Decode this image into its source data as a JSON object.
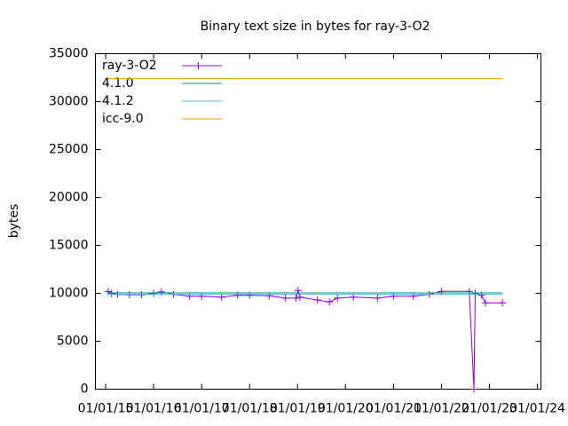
{
  "chart_data": {
    "type": "line",
    "title": "Binary text size in bytes for ray-3-O2",
    "y_label": "bytes",
    "xlim": [
      "2014-10-15",
      "2024-01-28"
    ],
    "xticks": [
      {
        "value": "2015-01-01",
        "label": "01/01/15"
      },
      {
        "value": "2016-01-01",
        "label": "01/01/16"
      },
      {
        "value": "2017-01-01",
        "label": "01/01/17"
      },
      {
        "value": "2018-01-01",
        "label": "01/01/18"
      },
      {
        "value": "2019-01-01",
        "label": "01/01/19"
      },
      {
        "value": "2020-01-01",
        "label": "01/01/20"
      },
      {
        "value": "2021-01-01",
        "label": "01/01/21"
      },
      {
        "value": "2022-01-01",
        "label": "01/01/22"
      },
      {
        "value": "2023-01-01",
        "label": "01/01/23"
      },
      {
        "value": "2024-01-01",
        "label": "01/01/24"
      }
    ],
    "ylim": [
      0,
      35000
    ],
    "yticks": [
      0,
      5000,
      10000,
      15000,
      20000,
      25000,
      30000,
      35000
    ],
    "legend": "top-left",
    "series": [
      {
        "name": "ray-3-O2",
        "color": "#9400d3",
        "markers": true,
        "x": [
          "2015-01-20",
          "2015-02-15",
          "2015-04-01",
          "2015-07-01",
          "2015-10-01",
          "2016-01-01",
          "2016-03-01",
          "2016-06-01",
          "2016-10-01",
          "2017-01-01",
          "2017-06-01",
          "2017-10-01",
          "2018-01-01",
          "2018-06-01",
          "2018-10-01",
          "2018-12-20",
          "2019-01-05",
          "2019-01-20",
          "2019-06-01",
          "2019-09-01",
          "2019-11-01",
          "2020-03-01",
          "2020-09-01",
          "2021-01-01",
          "2021-06-01",
          "2021-10-01",
          "2022-01-01",
          "2022-08-01",
          "2022-09-05",
          "2022-09-15",
          "2022-11-01",
          "2022-12-01",
          "2023-04-10"
        ],
        "values": [
          10200,
          10000,
          9900,
          9850,
          9850,
          10000,
          10150,
          9900,
          9700,
          9700,
          9600,
          9800,
          9800,
          9750,
          9500,
          9500,
          10300,
          9600,
          9300,
          9100,
          9500,
          9600,
          9500,
          9700,
          9700,
          9900,
          10200,
          10200,
          0,
          10000,
          9800,
          9000,
          9000
        ]
      },
      {
        "name": "4.1.0",
        "color": "#009e73",
        "x": [
          "2015-01-20",
          "2023-04-10"
        ],
        "values": [
          10050,
          10050
        ]
      },
      {
        "name": "4.1.2",
        "color": "#56b4e9",
        "x": [
          "2015-01-20",
          "2023-04-10"
        ],
        "values": [
          9900,
          9900
        ]
      },
      {
        "name": "icc-9.0",
        "color": "#e69f00",
        "x": [
          "2015-01-20",
          "2023-04-10"
        ],
        "values": [
          32400,
          32400
        ]
      }
    ]
  }
}
